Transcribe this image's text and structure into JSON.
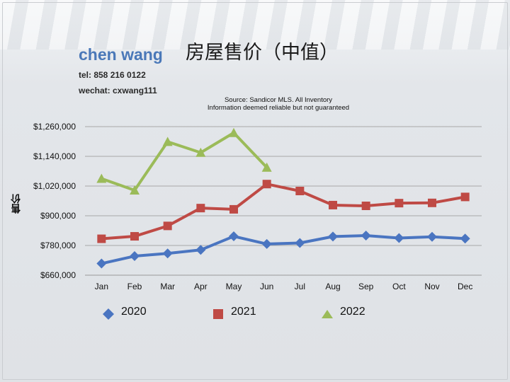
{
  "agent": {
    "name": "chen wang",
    "tel": "tel: 858 216 0122",
    "wechat": "wechat: cxwang111"
  },
  "title": "房屋售价（中值）",
  "source": {
    "line1": "Source: Sandicor MLS. All Inventory",
    "line2": "Information deemed reliable but not guaranteed"
  },
  "colors": {
    "2020": "#4a75c1",
    "2021": "#bf4a45",
    "2022": "#9bbb59"
  },
  "chart_data": {
    "type": "line",
    "title": "房屋售价（中值）",
    "xlabel": "",
    "ylabel": "售价",
    "categories": [
      "Jan",
      "Feb",
      "Mar",
      "Apr",
      "May",
      "Jun",
      "Jul",
      "Aug",
      "Sep",
      "Oct",
      "Nov",
      "Dec"
    ],
    "ylim": [
      660000,
      1260000
    ],
    "yticks": [
      660000,
      780000,
      900000,
      1020000,
      1140000,
      1260000
    ],
    "ytick_labels": [
      "$660,000",
      "$780,000",
      "$900,000",
      "$1,020,000",
      "$1,140,000",
      "$1,260,000"
    ],
    "grid": true,
    "legend_position": "bottom",
    "series": [
      {
        "name": "2020",
        "marker": "diamond",
        "values": [
          707000,
          737000,
          748000,
          762000,
          817000,
          786000,
          790000,
          816000,
          820000,
          810000,
          815000,
          808000
        ]
      },
      {
        "name": "2021",
        "marker": "square",
        "values": [
          807000,
          817000,
          859000,
          931000,
          926000,
          1028000,
          1000000,
          943000,
          940000,
          951000,
          952000,
          976000
        ]
      },
      {
        "name": "2022",
        "marker": "triangle",
        "values": [
          1050000,
          1003000,
          1199000,
          1155000,
          1235000,
          1095000,
          null,
          null,
          null,
          null,
          null,
          null
        ]
      }
    ]
  }
}
